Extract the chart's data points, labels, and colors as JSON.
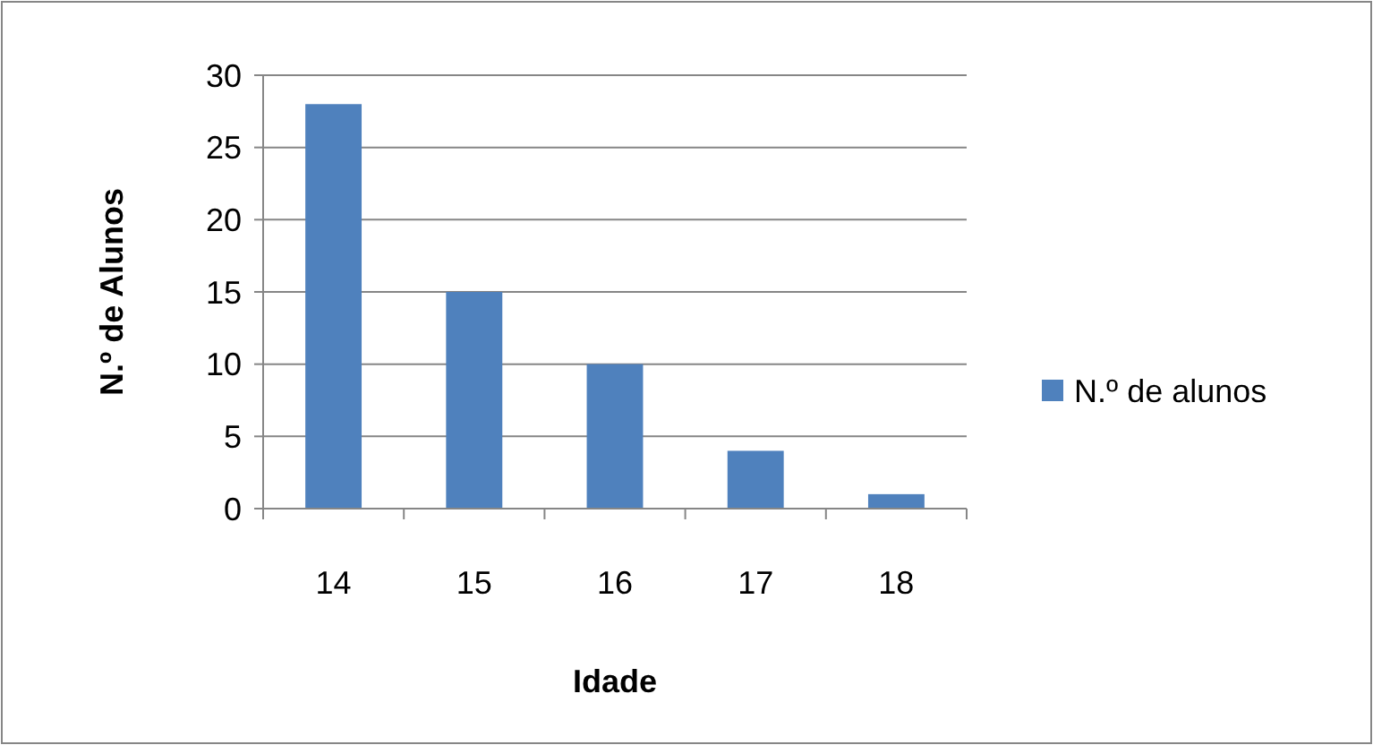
{
  "chart_data": {
    "type": "bar",
    "xlabel": "Idade",
    "ylabel": "N.º de Alunos",
    "categories": [
      "14",
      "15",
      "16",
      "17",
      "18"
    ],
    "series": [
      {
        "name": "N.º de alunos",
        "color": "#4f81bd",
        "values": [
          28,
          15,
          10,
          4,
          1
        ]
      }
    ],
    "ylim": [
      0,
      30
    ],
    "yticks": [
      0,
      5,
      10,
      15,
      20,
      25,
      30
    ],
    "grid": "y",
    "legend": "right"
  }
}
